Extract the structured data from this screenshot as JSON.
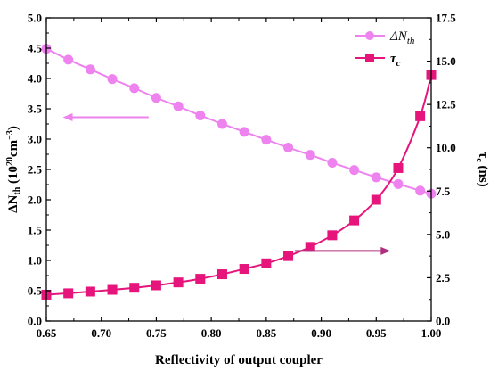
{
  "chart_data": {
    "type": "line",
    "xlabel": "Reflectivity of output coupler",
    "ylabel_left": {
      "main": "ΔN",
      "sub": "th",
      "unit_pre": " (10",
      "unit_sup": "20",
      "unit_mid": "cm",
      "unit_sup2": "−3",
      "unit_post": ")"
    },
    "ylabel_right": {
      "main": "τ",
      "sub": "c",
      "unit": " (ns)"
    },
    "xlim": [
      0.65,
      1.0
    ],
    "ylim_left": [
      0.0,
      5.0
    ],
    "ylim_right": [
      0.0,
      17.5
    ],
    "x_ticks": [
      "0.65",
      "0.70",
      "0.75",
      "0.80",
      "0.85",
      "0.90",
      "0.95",
      "1.00"
    ],
    "y_left_ticks": [
      "0.0",
      "0.5",
      "1.0",
      "1.5",
      "2.0",
      "2.5",
      "3.0",
      "3.5",
      "4.0",
      "4.5",
      "5.0"
    ],
    "y_right_ticks": [
      "0.0",
      "2.5",
      "5.0",
      "7.5",
      "10.0",
      "12.5",
      "15.0",
      "17.5"
    ],
    "grid": false,
    "legend_position": "top-right",
    "series": [
      {
        "name": "ΔN_th",
        "legend_main": "ΔN",
        "legend_sub": "th",
        "axis": "left",
        "marker": "circle",
        "color": "#ee82ee",
        "x": [
          0.65,
          0.67,
          0.69,
          0.71,
          0.73,
          0.75,
          0.77,
          0.79,
          0.81,
          0.83,
          0.85,
          0.87,
          0.89,
          0.91,
          0.93,
          0.95,
          0.97,
          0.99,
          1.0
        ],
        "values": [
          4.49,
          4.31,
          4.15,
          3.99,
          3.84,
          3.68,
          3.54,
          3.39,
          3.25,
          3.12,
          2.99,
          2.86,
          2.74,
          2.61,
          2.49,
          2.37,
          2.26,
          2.15,
          2.1
        ]
      },
      {
        "name": "τ_c",
        "legend_main": "τ",
        "legend_sub": "c",
        "axis": "right",
        "marker": "square",
        "color": "#e6157b",
        "x": [
          0.65,
          0.67,
          0.69,
          0.71,
          0.73,
          0.75,
          0.77,
          0.79,
          0.81,
          0.83,
          0.85,
          0.87,
          0.89,
          0.91,
          0.93,
          0.95,
          0.97,
          0.99,
          1.0
        ],
        "values": [
          1.52,
          1.6,
          1.7,
          1.8,
          1.92,
          2.06,
          2.23,
          2.44,
          2.7,
          3.01,
          3.33,
          3.75,
          4.28,
          4.95,
          5.81,
          7.0,
          8.83,
          11.82,
          14.2
        ]
      }
    ],
    "annotations": [
      {
        "type": "arrow",
        "direction": "left",
        "series": "ΔN_th",
        "color": "#ee82ee"
      },
      {
        "type": "arrow",
        "direction": "right",
        "series": "τ_c",
        "color": "#b0307f"
      }
    ]
  }
}
